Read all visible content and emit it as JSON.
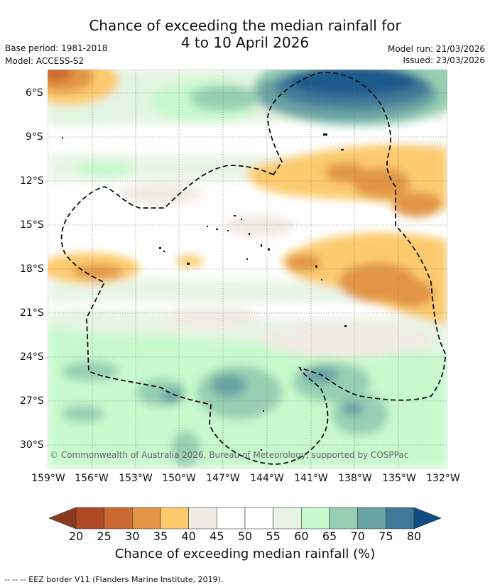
{
  "header": {
    "title_line1": "Chance of exceeding the median rainfall for",
    "title_line2": "4 to 10 April 2026",
    "base_period": "Base period: 1981-2018",
    "model": "Model: ACCESS-S2",
    "model_run": "Model run: 21/03/2026",
    "issued": "Issued: 23/03/2026"
  },
  "map": {
    "lat_labels": [
      "6°S",
      "9°S",
      "12°S",
      "15°S",
      "18°S",
      "21°S",
      "24°S",
      "27°S",
      "30°S"
    ],
    "lon_labels": [
      "159°W",
      "156°W",
      "153°W",
      "150°W",
      "147°W",
      "144°W",
      "141°W",
      "138°W",
      "135°W",
      "132°W"
    ],
    "copyright": "© Commonwealth of Australia 2026, Bureau of Meteorology, supported by COSPPac"
  },
  "colorbar": {
    "ticks": [
      "20",
      "25",
      "30",
      "35",
      "40",
      "45",
      "50",
      "55",
      "60",
      "65",
      "70",
      "75",
      "80"
    ],
    "low_arrow_color": "#8c3a1f",
    "high_arrow_color": "#0f4c84",
    "colors": [
      "#b04a24",
      "#cb6a32",
      "#e19545",
      "#fdcb6e",
      "#f0ebe4",
      "#ffffff",
      "#ffffff",
      "#e7f4e5",
      "#c8f9cd",
      "#98cfb4",
      "#6aa3a3",
      "#3f7898"
    ],
    "title": "Chance of exceeding median rainfall (%)"
  },
  "footnote": "--  --  -- EEZ border V11 (Flanders Marine Institute, 2019)."
}
